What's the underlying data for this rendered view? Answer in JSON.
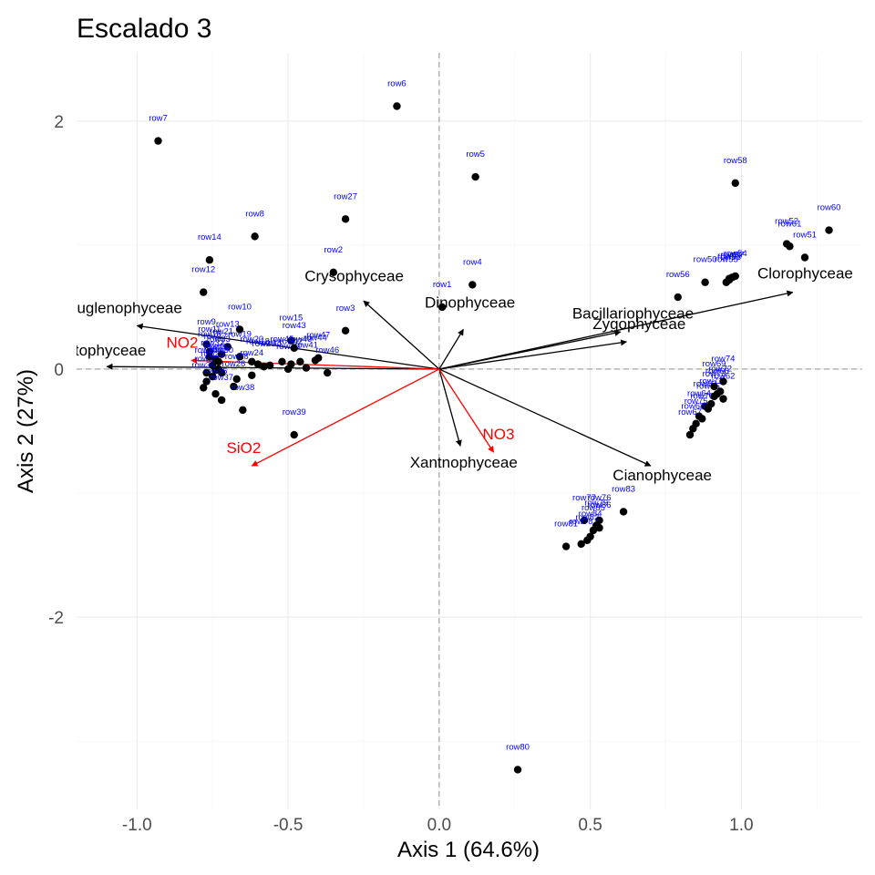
{
  "chart_data": {
    "type": "scatter",
    "title": "Escalado 3",
    "xlabel": "Axis 1 (64.6%)",
    "ylabel": "Axis 2 (27%)",
    "xlim": [
      -1.2,
      1.4
    ],
    "ylim": [
      -3.55,
      2.55
    ],
    "x_ticks": [
      -1.0,
      -0.5,
      0.0,
      0.5,
      1.0
    ],
    "x_tick_labels": [
      "-1.0",
      "-0.5",
      "0.0",
      "0.5",
      "1.0"
    ],
    "y_ticks": [
      -2,
      0,
      2
    ],
    "y_tick_labels": [
      "-2",
      "0",
      "2"
    ],
    "grid": true,
    "reference_lines": {
      "x": 0,
      "y": 0,
      "style": "dashed"
    },
    "colors": {
      "points": "#000000",
      "point_labels": "#0000ff",
      "species_arrows": "#000000",
      "env_arrows": "#ff0000"
    },
    "points": [
      {
        "label": "row1",
        "x": 0.01,
        "y": 0.5
      },
      {
        "label": "row2",
        "x": -0.35,
        "y": 0.78
      },
      {
        "label": "row3",
        "x": -0.31,
        "y": 0.31
      },
      {
        "label": "row4",
        "x": 0.11,
        "y": 0.68
      },
      {
        "label": "row5",
        "x": 0.12,
        "y": 1.55
      },
      {
        "label": "row6",
        "x": -0.14,
        "y": 2.12
      },
      {
        "label": "row7",
        "x": -0.93,
        "y": 1.84
      },
      {
        "label": "row8",
        "x": -0.61,
        "y": 1.07
      },
      {
        "label": "row9",
        "x": -0.77,
        "y": 0.2
      },
      {
        "label": "row10",
        "x": -0.66,
        "y": 0.32
      },
      {
        "label": "row11",
        "x": -0.76,
        "y": 0.14
      },
      {
        "label": "row12",
        "x": -0.78,
        "y": 0.62
      },
      {
        "label": "row13",
        "x": -0.7,
        "y": 0.18
      },
      {
        "label": "row14",
        "x": -0.76,
        "y": 0.88
      },
      {
        "label": "row15",
        "x": -0.49,
        "y": 0.23
      },
      {
        "label": "row16",
        "x": -0.76,
        "y": 0.1
      },
      {
        "label": "row17",
        "x": -0.74,
        "y": 0.08
      },
      {
        "label": "row18",
        "x": -0.6,
        "y": 0.04
      },
      {
        "label": "row19",
        "x": -0.66,
        "y": 0.1
      },
      {
        "label": "row20",
        "x": -0.62,
        "y": 0.06
      },
      {
        "label": "row21",
        "x": -0.72,
        "y": 0.12
      },
      {
        "label": "row22",
        "x": -0.73,
        "y": 0.0
      },
      {
        "label": "row23",
        "x": -0.75,
        "y": -0.06
      },
      {
        "label": "row24",
        "x": -0.62,
        "y": -0.05
      },
      {
        "label": "row25",
        "x": -0.77,
        "y": -0.1
      },
      {
        "label": "row26",
        "x": -0.68,
        "y": -0.14
      },
      {
        "label": "row27",
        "x": -0.31,
        "y": 1.21
      },
      {
        "label": "row28",
        "x": -0.67,
        "y": -0.08
      },
      {
        "label": "row29",
        "x": -0.58,
        "y": 0.02
      },
      {
        "label": "row30",
        "x": -0.72,
        "y": -0.03
      },
      {
        "label": "row31",
        "x": -0.74,
        "y": -0.01
      },
      {
        "label": "row32",
        "x": -0.75,
        "y": 0.03
      },
      {
        "label": "row33",
        "x": -0.73,
        "y": 0.06
      },
      {
        "label": "row34",
        "x": -0.77,
        "y": -0.03
      },
      {
        "label": "row35",
        "x": -0.74,
        "y": -0.2
      },
      {
        "label": "row36",
        "x": -0.78,
        "y": -0.15
      },
      {
        "label": "row37",
        "x": -0.72,
        "y": -0.25
      },
      {
        "label": "row38",
        "x": -0.65,
        "y": -0.33
      },
      {
        "label": "row39",
        "x": -0.48,
        "y": -0.53
      },
      {
        "label": "row40",
        "x": -0.5,
        "y": 0.0
      },
      {
        "label": "row41",
        "x": -0.44,
        "y": 0.01
      },
      {
        "label": "row42",
        "x": -0.49,
        "y": 0.04
      },
      {
        "label": "row43",
        "x": -0.48,
        "y": 0.17
      },
      {
        "label": "row44",
        "x": -0.41,
        "y": 0.07
      },
      {
        "label": "row45",
        "x": -0.52,
        "y": 0.06
      },
      {
        "label": "row46",
        "x": -0.37,
        "y": -0.03
      },
      {
        "label": "row47",
        "x": -0.4,
        "y": 0.09
      },
      {
        "label": "row48",
        "x": -0.56,
        "y": 0.03
      },
      {
        "label": "row49",
        "x": -0.46,
        "y": 0.06
      },
      {
        "label": "row50",
        "x": 0.88,
        "y": 0.7
      },
      {
        "label": "row51",
        "x": 1.21,
        "y": 0.9
      },
      {
        "label": "row52",
        "x": 1.15,
        "y": 1.01
      },
      {
        "label": "row53",
        "x": 0.96,
        "y": 0.72
      },
      {
        "label": "row54",
        "x": 0.98,
        "y": 0.75
      },
      {
        "label": "row55",
        "x": 0.95,
        "y": 0.7
      },
      {
        "label": "row56",
        "x": 0.79,
        "y": 0.58
      },
      {
        "label": "row57",
        "x": 0.97,
        "y": 0.74
      },
      {
        "label": "row58",
        "x": 0.98,
        "y": 1.5
      },
      {
        "label": "row59",
        "x": 0.96,
        "y": 0.73
      },
      {
        "label": "row60",
        "x": 1.29,
        "y": 1.12
      },
      {
        "label": "row61",
        "x": 1.16,
        "y": 0.99
      },
      {
        "label": "row62",
        "x": 0.94,
        "y": -0.24
      },
      {
        "label": "row63",
        "x": 0.88,
        "y": -0.3
      },
      {
        "label": "row64",
        "x": 0.86,
        "y": -0.38
      },
      {
        "label": "row65",
        "x": 0.89,
        "y": -0.32
      },
      {
        "label": "row66",
        "x": 0.92,
        "y": -0.2
      },
      {
        "label": "row67",
        "x": 0.83,
        "y": -0.53
      },
      {
        "label": "row68",
        "x": 0.84,
        "y": -0.48
      },
      {
        "label": "row69",
        "x": 0.91,
        "y": -0.14
      },
      {
        "label": "row70",
        "x": 0.87,
        "y": -0.4
      },
      {
        "label": "row71",
        "x": 0.9,
        "y": -0.28
      },
      {
        "label": "row72",
        "x": 0.93,
        "y": -0.18
      },
      {
        "label": "row73",
        "x": 0.91,
        "y": -0.22
      },
      {
        "label": "row74",
        "x": 0.94,
        "y": -0.1
      },
      {
        "label": "row75",
        "x": 0.85,
        "y": -0.44
      },
      {
        "label": "row76",
        "x": 0.53,
        "y": -1.22
      },
      {
        "label": "row77",
        "x": 0.48,
        "y": -1.22
      },
      {
        "label": "row78",
        "x": 0.47,
        "y": -1.41
      },
      {
        "label": "row79",
        "x": 0.52,
        "y": -1.26
      },
      {
        "label": "row80",
        "x": 0.26,
        "y": -3.23
      },
      {
        "label": "row81",
        "x": 0.42,
        "y": -1.43
      },
      {
        "label": "row82",
        "x": 0.49,
        "y": -1.38
      },
      {
        "label": "row83",
        "x": 0.61,
        "y": -1.15
      },
      {
        "label": "row84",
        "x": 0.5,
        "y": -1.35
      },
      {
        "label": "row85",
        "x": 0.51,
        "y": -1.3
      },
      {
        "label": "row86",
        "x": 0.53,
        "y": -1.28
      }
    ],
    "species_arrows": [
      {
        "label": "Euglenophyceae",
        "x": -1.0,
        "y": 0.35
      },
      {
        "label": "Cryptophyceae",
        "x": -1.1,
        "y": 0.02
      },
      {
        "label": "Crysophyceae",
        "x": -0.25,
        "y": 0.55
      },
      {
        "label": "Dinophyceae",
        "x": 0.08,
        "y": 0.32
      },
      {
        "label": "Bacillariophyceae",
        "x": 0.6,
        "y": 0.3
      },
      {
        "label": "Zygophyceae",
        "x": 0.62,
        "y": 0.22
      },
      {
        "label": "Clorophyceae",
        "x": 1.17,
        "y": 0.62
      },
      {
        "label": "Xantnophyceae",
        "x": 0.07,
        "y": -0.62
      },
      {
        "label": "Cianophyceae",
        "x": 0.7,
        "y": -0.78
      }
    ],
    "env_arrows": [
      {
        "label": "NO2",
        "x": -0.82,
        "y": 0.07
      },
      {
        "label": "SiO2",
        "x": -0.62,
        "y": -0.78
      },
      {
        "label": "NO3",
        "x": 0.18,
        "y": -0.67
      }
    ]
  }
}
